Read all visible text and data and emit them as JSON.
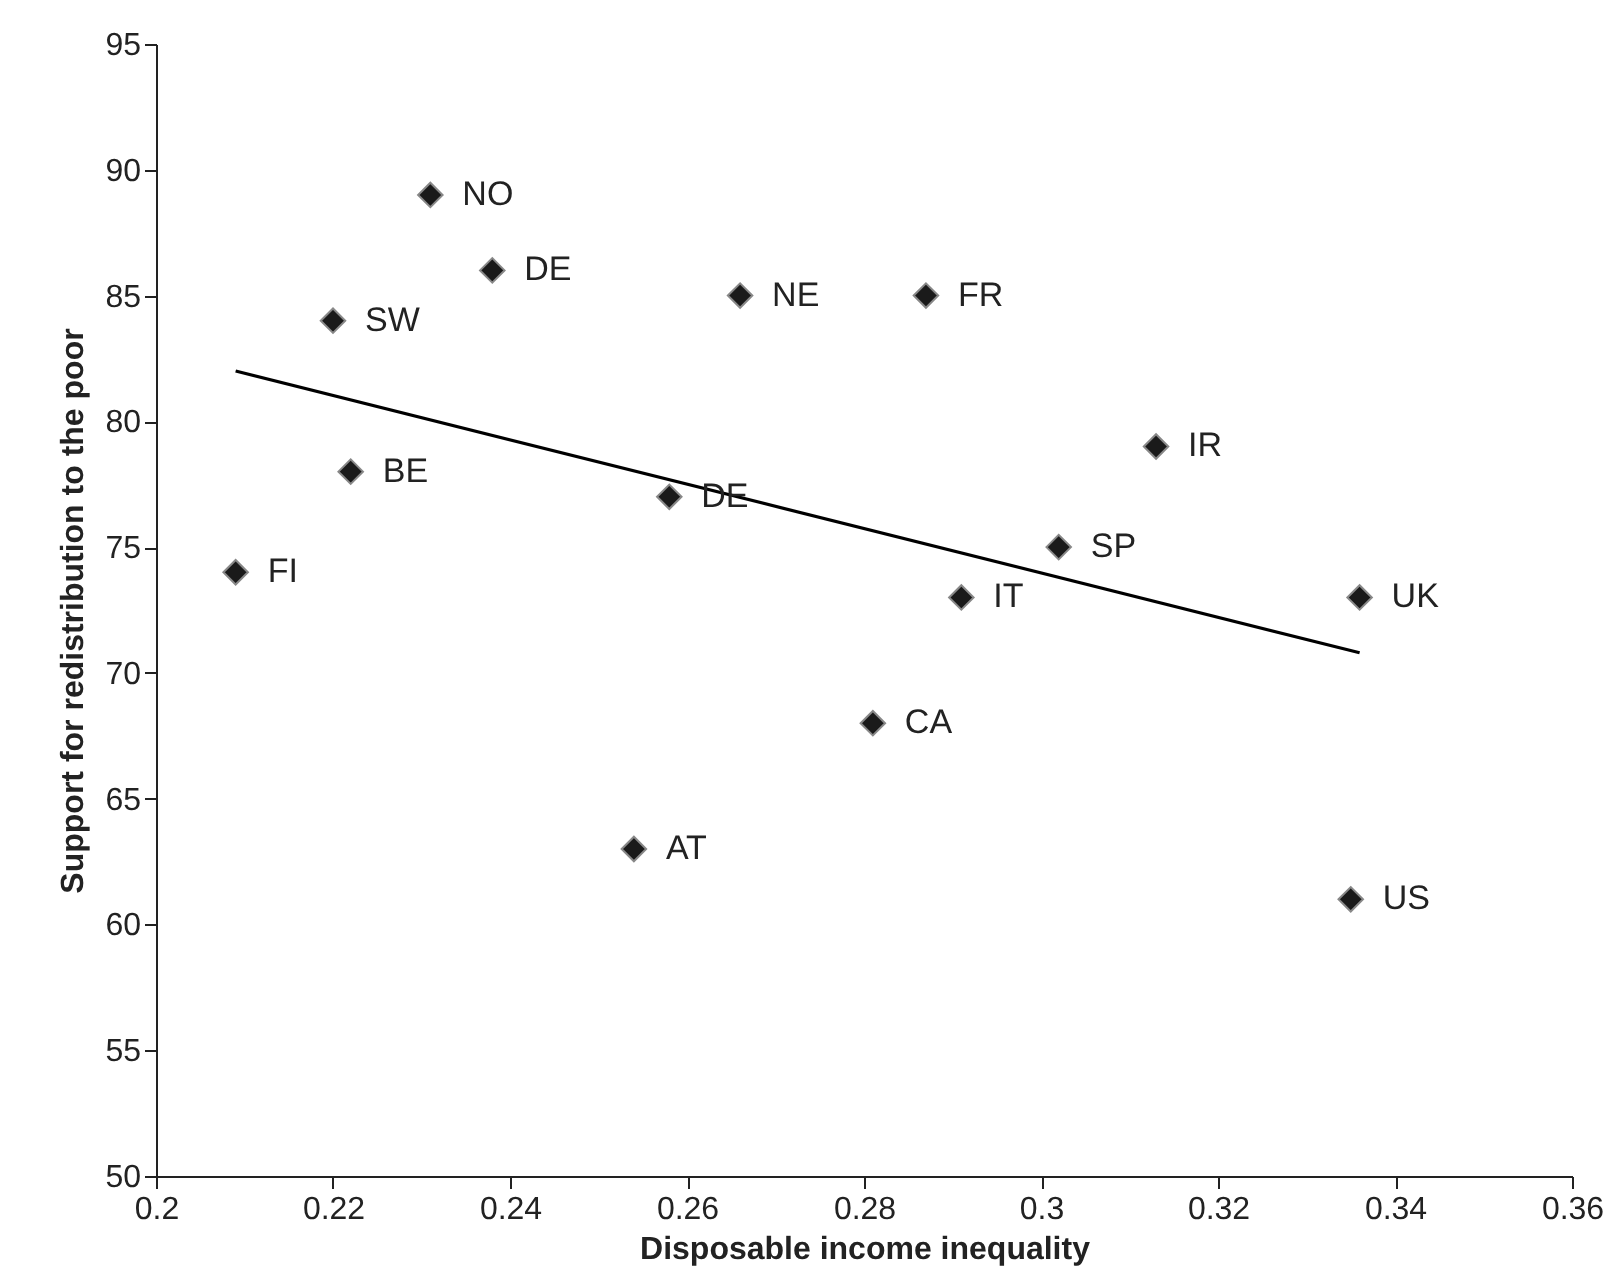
{
  "chart_data": {
    "type": "scatter",
    "xlabel": "Disposable income inequality",
    "ylabel": "Support for redistribution to the poor",
    "xlim": [
      0.2,
      0.36
    ],
    "xticks": [
      0.2,
      0.22,
      0.24,
      0.26,
      0.28,
      0.3,
      0.32,
      0.34,
      0.36
    ],
    "ylim": [
      50,
      95
    ],
    "yticks": [
      50,
      55,
      60,
      65,
      70,
      75,
      80,
      85,
      90,
      95
    ],
    "grid": false,
    "series": [
      {
        "marker": "diamond",
        "color": "#1a1a1a",
        "x": [
          0.231,
          0.238,
          0.22,
          0.266,
          0.287,
          0.313,
          0.222,
          0.258,
          0.209,
          0.302,
          0.291,
          0.336,
          0.281,
          0.254,
          0.335
        ],
        "values": [
          89,
          86,
          84,
          85,
          85,
          79,
          78,
          77,
          74,
          75,
          73,
          73,
          68,
          63,
          61
        ]
      },
      {
        "type": "line",
        "color": "#000000",
        "x": [
          0.209,
          0.336
        ],
        "values": [
          82.0,
          70.8
        ]
      }
    ],
    "annotations": [
      {
        "text": "NO",
        "x": 0.231,
        "y": 89
      },
      {
        "text": "DE",
        "x": 0.238,
        "y": 86
      },
      {
        "text": "SW",
        "x": 0.22,
        "y": 84
      },
      {
        "text": "NE",
        "x": 0.266,
        "y": 85
      },
      {
        "text": "FR",
        "x": 0.287,
        "y": 85
      },
      {
        "text": "IR",
        "x": 0.313,
        "y": 79
      },
      {
        "text": "BE",
        "x": 0.222,
        "y": 78
      },
      {
        "text": "DE",
        "x": 0.258,
        "y": 77
      },
      {
        "text": "FI",
        "x": 0.209,
        "y": 74
      },
      {
        "text": "SP",
        "x": 0.302,
        "y": 75
      },
      {
        "text": "IT",
        "x": 0.291,
        "y": 73
      },
      {
        "text": "UK",
        "x": 0.336,
        "y": 73
      },
      {
        "text": "CA",
        "x": 0.281,
        "y": 68
      },
      {
        "text": "AT",
        "x": 0.254,
        "y": 63
      },
      {
        "text": "US",
        "x": 0.335,
        "y": 61
      }
    ]
  }
}
